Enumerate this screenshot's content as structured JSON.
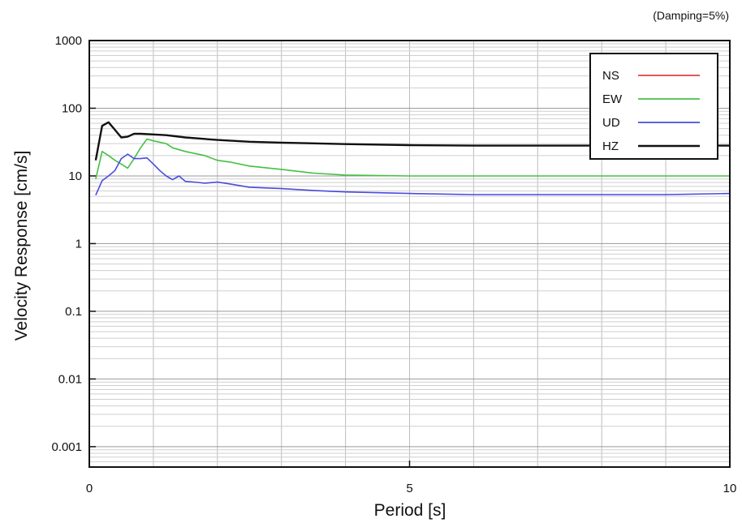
{
  "chart_data": {
    "type": "line",
    "title": "",
    "annotation": "(Damping=5%)",
    "xlabel": "Period [s]",
    "ylabel": "Velocity Response [cm/s]",
    "xlim": [
      0,
      10
    ],
    "ylim": [
      0.0005,
      1000
    ],
    "yscale": "log",
    "grid": true,
    "legend_position": "top-right",
    "x_ticks": [
      0,
      5,
      10
    ],
    "x_tick_labels": [
      "0",
      "5",
      "10"
    ],
    "y_ticks": [
      0.001,
      0.01,
      0.1,
      1,
      10,
      100,
      1000
    ],
    "y_tick_labels": [
      "0.001",
      "0.01",
      "0.1",
      "1",
      "10",
      "100",
      "1000"
    ],
    "series": [
      {
        "name": "NS",
        "color": "#e04040",
        "points": [
          [
            0.1,
            17
          ],
          [
            0.2,
            55
          ],
          [
            0.3,
            62
          ],
          [
            0.4,
            48
          ],
          [
            0.5,
            37
          ],
          [
            0.6,
            38
          ],
          [
            0.7,
            42
          ],
          [
            0.8,
            42
          ],
          [
            1.0,
            41
          ],
          [
            1.2,
            40
          ],
          [
            1.5,
            37
          ],
          [
            2.0,
            34
          ],
          [
            2.5,
            32
          ],
          [
            3.0,
            31
          ],
          [
            4.0,
            29.5
          ],
          [
            5.0,
            28.5
          ],
          [
            6.0,
            28
          ],
          [
            7.0,
            28
          ],
          [
            8.0,
            28
          ],
          [
            9.0,
            28
          ],
          [
            10.0,
            28
          ]
        ]
      },
      {
        "name": "EW",
        "color": "#44c044",
        "points": [
          [
            0.1,
            9
          ],
          [
            0.2,
            23
          ],
          [
            0.3,
            20
          ],
          [
            0.4,
            17
          ],
          [
            0.5,
            15
          ],
          [
            0.6,
            13
          ],
          [
            0.7,
            18
          ],
          [
            0.8,
            26
          ],
          [
            0.9,
            35
          ],
          [
            1.0,
            33
          ],
          [
            1.2,
            30
          ],
          [
            1.3,
            26
          ],
          [
            1.5,
            23
          ],
          [
            1.8,
            20
          ],
          [
            2.0,
            17
          ],
          [
            2.2,
            16
          ],
          [
            2.5,
            14
          ],
          [
            3.0,
            12.5
          ],
          [
            3.5,
            11
          ],
          [
            4.0,
            10.3
          ],
          [
            5.0,
            10
          ],
          [
            6.0,
            10
          ],
          [
            7.0,
            10
          ],
          [
            8.0,
            10
          ],
          [
            9.0,
            10
          ],
          [
            10.0,
            10
          ]
        ]
      },
      {
        "name": "UD",
        "color": "#4a4ae0",
        "points": [
          [
            0.1,
            5.2
          ],
          [
            0.2,
            8.5
          ],
          [
            0.3,
            10
          ],
          [
            0.4,
            12
          ],
          [
            0.5,
            18
          ],
          [
            0.6,
            21
          ],
          [
            0.7,
            18
          ],
          [
            0.8,
            18
          ],
          [
            0.9,
            18.5
          ],
          [
            1.0,
            15
          ],
          [
            1.1,
            12
          ],
          [
            1.2,
            10
          ],
          [
            1.3,
            8.8
          ],
          [
            1.4,
            10
          ],
          [
            1.5,
            8.3
          ],
          [
            1.7,
            8
          ],
          [
            1.8,
            7.8
          ],
          [
            2.0,
            8.1
          ],
          [
            2.2,
            7.6
          ],
          [
            2.5,
            6.8
          ],
          [
            3.0,
            6.5
          ],
          [
            3.5,
            6.1
          ],
          [
            4.0,
            5.8
          ],
          [
            5.0,
            5.5
          ],
          [
            6.0,
            5.3
          ],
          [
            7.0,
            5.3
          ],
          [
            8.0,
            5.3
          ],
          [
            9.0,
            5.3
          ],
          [
            10.0,
            5.5
          ]
        ]
      },
      {
        "name": "HZ",
        "color": "#111111",
        "points": [
          [
            0.1,
            17
          ],
          [
            0.2,
            55
          ],
          [
            0.3,
            62
          ],
          [
            0.4,
            48
          ],
          [
            0.5,
            37
          ],
          [
            0.6,
            38
          ],
          [
            0.7,
            42
          ],
          [
            0.8,
            42
          ],
          [
            1.0,
            41
          ],
          [
            1.2,
            40
          ],
          [
            1.5,
            37
          ],
          [
            2.0,
            34
          ],
          [
            2.5,
            32
          ],
          [
            3.0,
            31
          ],
          [
            4.0,
            29.5
          ],
          [
            5.0,
            28.5
          ],
          [
            6.0,
            28
          ],
          [
            7.0,
            28
          ],
          [
            8.0,
            28
          ],
          [
            9.0,
            28
          ],
          [
            10.0,
            28
          ]
        ]
      }
    ]
  }
}
